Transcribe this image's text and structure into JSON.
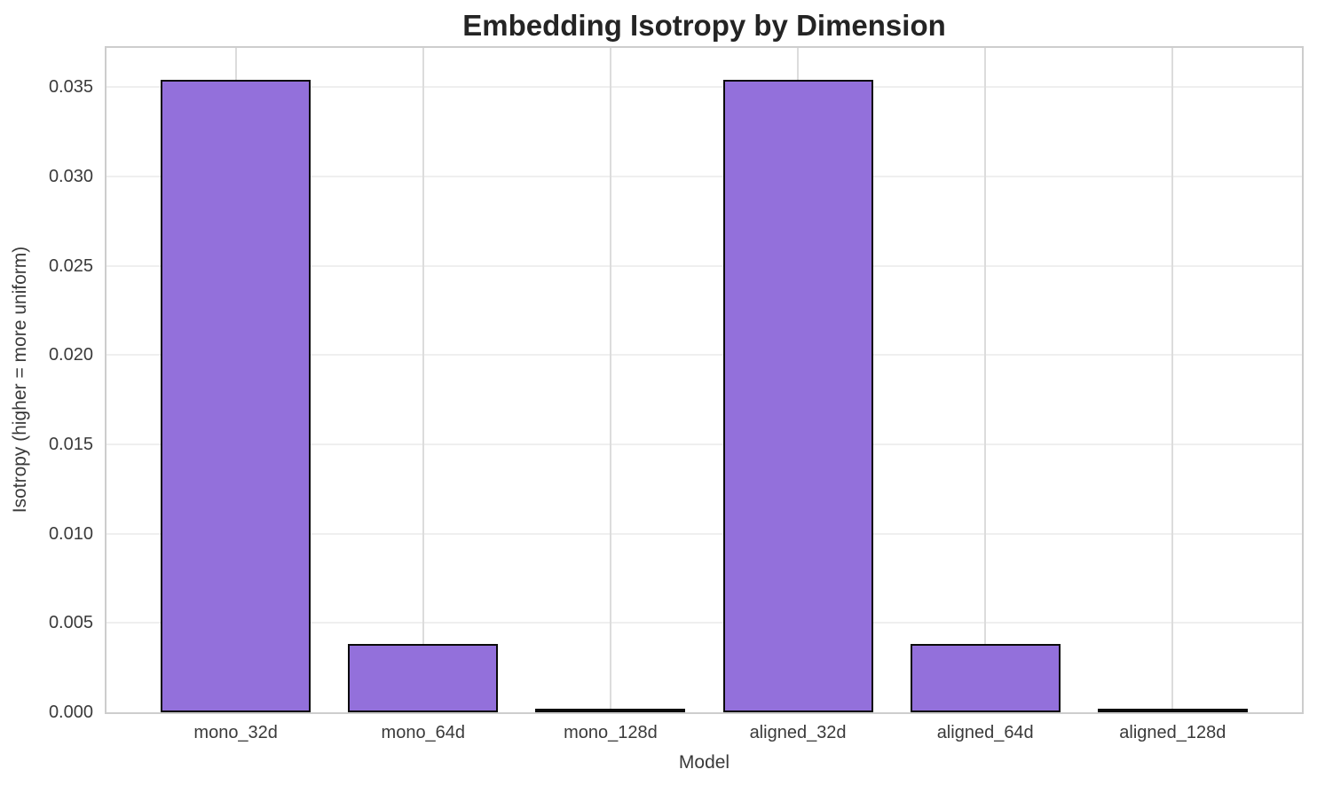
{
  "chart_data": {
    "type": "bar",
    "title": "Embedding Isotropy by Dimension",
    "xlabel": "Model",
    "ylabel": "Isotropy (higher = more uniform)",
    "categories": [
      "mono_32d",
      "mono_64d",
      "mono_128d",
      "aligned_32d",
      "aligned_64d",
      "aligned_128d"
    ],
    "values": [
      0.0354,
      0.0038,
      0.0001,
      0.0354,
      0.0038,
      0.0001
    ],
    "ylim": [
      0,
      0.0372
    ],
    "ytick_labels": [
      "0.000",
      "0.005",
      "0.010",
      "0.015",
      "0.020",
      "0.025",
      "0.030",
      "0.035"
    ],
    "grid": true,
    "legend_position": "none",
    "bar_width_fraction": 0.8,
    "colors": {
      "bar_fill": "#9370DB",
      "bar_edge": "#0a0a0a",
      "grid_horizontal": "#efefef",
      "grid_vertical": "#dcdcdc",
      "spine": "#cdcdcd",
      "tick_text": "#3a3a3a",
      "title_text": "#242424",
      "background": "#ffffff"
    }
  }
}
